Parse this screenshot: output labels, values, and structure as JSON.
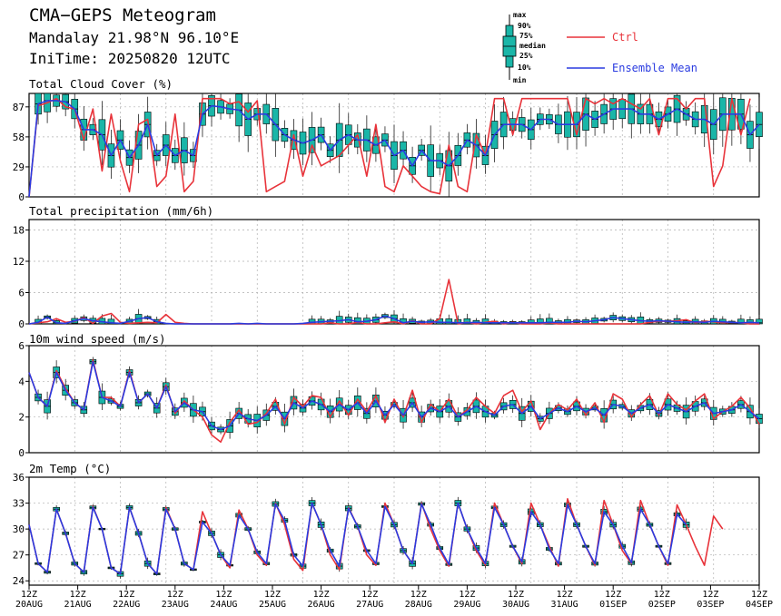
{
  "header": {
    "title": "CMA−GEPS Meteogram",
    "location": "Mandalay 21.98°N 96.10°E",
    "init_time": "IniTime: 20250820 12UTC"
  },
  "legend": {
    "box_labels": [
      "max",
      "90%",
      "75%",
      "median",
      "25%",
      "10%",
      "min"
    ],
    "ctrl_label": "Ctrl",
    "mean_label": "Ensemble Mean"
  },
  "colors": {
    "ctrl": "#e8333a",
    "mean": "#2a3be0",
    "box_fill": "#1ab6a8",
    "grid": "#b0b0b0"
  },
  "x_axis": {
    "tick_hour": "12Z",
    "tick_dates": [
      "20AUG",
      "21AUG",
      "22AUG",
      "23AUG",
      "24AUG",
      "25AUG",
      "26AUG",
      "27AUG",
      "28AUG",
      "29AUG",
      "30AUG",
      "31AUG",
      "01SEP",
      "02SEP",
      "03SEP",
      "04SEP"
    ]
  },
  "chart_data": [
    {
      "type": "line",
      "title": "Total Cloud Cover (%)",
      "ylim": [
        0,
        100
      ],
      "yticks": [
        0,
        29,
        58,
        87
      ],
      "grid": true,
      "series": [
        {
          "name": "Ctrl",
          "values": [
            0,
            88,
            91,
            95,
            87,
            85,
            55,
            85,
            25,
            80,
            35,
            5,
            70,
            75,
            10,
            20,
            80,
            5,
            15,
            95,
            95,
            95,
            90,
            92,
            82,
            93,
            5,
            10,
            15,
            60,
            20,
            50,
            30,
            35,
            40,
            50,
            60,
            20,
            70,
            10,
            5,
            30,
            20,
            10,
            5,
            3,
            50,
            10,
            5,
            60,
            40,
            95,
            95,
            60,
            95,
            95,
            95,
            95,
            95,
            95,
            60,
            95,
            90,
            95,
            90,
            95,
            90,
            85,
            95,
            60,
            95,
            95,
            85,
            95,
            95,
            10,
            30,
            95,
            60,
            95
          ]
        },
        {
          "name": "Ensemble Mean",
          "values": [
            0,
            90,
            93,
            93,
            92,
            85,
            65,
            65,
            60,
            40,
            55,
            38,
            50,
            70,
            40,
            50,
            40,
            45,
            40,
            80,
            88,
            87,
            85,
            84,
            75,
            80,
            80,
            70,
            60,
            55,
            52,
            55,
            60,
            45,
            55,
            60,
            55,
            55,
            50,
            55,
            40,
            45,
            30,
            45,
            35,
            35,
            30,
            40,
            55,
            50,
            40,
            60,
            70,
            70,
            70,
            65,
            75,
            75,
            70,
            70,
            70,
            80,
            75,
            80,
            85,
            85,
            85,
            80,
            80,
            75,
            80,
            85,
            80,
            75,
            75,
            70,
            80,
            80,
            80,
            60,
            70
          ]
        }
      ]
    },
    {
      "type": "line",
      "title": "Total precipitation (mm/6h)",
      "ylim": [
        0,
        20
      ],
      "yticks": [
        0,
        6,
        12,
        18
      ],
      "grid": true,
      "series": [
        {
          "name": "Ctrl",
          "values": [
            0,
            0.2,
            0.4,
            1,
            0.3,
            0.5,
            1.2,
            0.1,
            1.5,
            2,
            0.3,
            0.1,
            0.2,
            0.3,
            0.2,
            1.8,
            0.3,
            0.1,
            0,
            0,
            0,
            0,
            0,
            0,
            0,
            0,
            0,
            0,
            0,
            0,
            0,
            0,
            0,
            0.2,
            0,
            0,
            0.3,
            0,
            0,
            0.2,
            0.4,
            0,
            0.6,
            0,
            0,
            1,
            8.5,
            0,
            0.3,
            0,
            0.3,
            0.5,
            0,
            0.3,
            0,
            0,
            0,
            0.2,
            0,
            0,
            0,
            0,
            0,
            0,
            0,
            0,
            0,
            0,
            0.3,
            0.5,
            0.5,
            0.6,
            0.8,
            0.2,
            0.5,
            0.4,
            0.2,
            0.3,
            0.2,
            0,
            0
          ]
        },
        {
          "name": "Ensemble Mean",
          "values": [
            0,
            0.3,
            1.3,
            0.2,
            0.1,
            0.6,
            1,
            0.6,
            0.4,
            0.2,
            0.1,
            0.5,
            1,
            1.2,
            0.4,
            0.1,
            0,
            0,
            0,
            0,
            0,
            0,
            0,
            0.1,
            0,
            0.1,
            0,
            0,
            0,
            0,
            0.1,
            0.3,
            0.4,
            0.5,
            0.6,
            0.8,
            0.4,
            0.5,
            0.8,
            1.5,
            1,
            0.2,
            0.5,
            0.3,
            0.4,
            0.3,
            0.3,
            0.2,
            0.2,
            0.3,
            0.2,
            0.2,
            0.2,
            0.2,
            0.2,
            0.2,
            0.2,
            0.3,
            0.3,
            0.3,
            0.5,
            0.4,
            0.6,
            0.8,
            1.2,
            1,
            0.8,
            0.6,
            0.5,
            0.6,
            0.5,
            0.4,
            0.3,
            0.4,
            0.3,
            0.5,
            0.4,
            0.3,
            0.2,
            0.3,
            0.2
          ]
        }
      ]
    },
    {
      "type": "line",
      "title": "10m wind speed (m/s)",
      "ylim": [
        0,
        6
      ],
      "yticks": [
        0,
        2,
        4,
        6
      ],
      "grid": true,
      "series": [
        {
          "name": "Ctrl",
          "values": [
            4.5,
            3.1,
            2.6,
            4.6,
            3.6,
            2.8,
            2.4,
            5.2,
            3.1,
            3.1,
            2.6,
            4.6,
            2.8,
            3.3,
            2.5,
            3.8,
            2.2,
            2.9,
            2.4,
            2.0,
            1.0,
            0.6,
            1.7,
            2.4,
            1.6,
            1.7,
            2.2,
            3.0,
            1.6,
            3.1,
            2.6,
            3.2,
            3.1,
            2.0,
            2.9,
            2.1,
            3.0,
            2.3,
            3.2,
            1.7,
            3.0,
            2.0,
            3.5,
            1.7,
            2.7,
            2.3,
            3.0,
            2.0,
            2.4,
            3.1,
            2.6,
            2.2,
            3.2,
            3.5,
            2.3,
            2.9,
            1.3,
            2.2,
            2.7,
            2.4,
            3.0,
            2.1,
            2.8,
            1.7,
            3.3,
            3.0,
            2.0,
            2.7,
            3.2,
            2.1,
            3.3,
            2.7,
            2.4,
            2.9,
            3.3,
            1.9,
            2.3,
            2.6,
            3.1,
            2.5,
            1.6
          ]
        },
        {
          "name": "Ensemble Mean",
          "values": [
            4.5,
            3.1,
            2.6,
            4.5,
            3.5,
            2.8,
            2.4,
            5.1,
            3.1,
            2.9,
            2.6,
            4.5,
            2.8,
            3.3,
            2.5,
            3.7,
            2.3,
            2.8,
            2.4,
            2.3,
            1.5,
            1.3,
            1.5,
            2.2,
            1.9,
            1.8,
            2.1,
            2.6,
            1.9,
            2.8,
            2.5,
            2.9,
            2.7,
            2.3,
            2.7,
            2.4,
            2.8,
            2.2,
            2.9,
            2.1,
            2.7,
            2.1,
            2.8,
            2.0,
            2.5,
            2.3,
            2.6,
            2.0,
            2.3,
            2.6,
            2.3,
            2.1,
            2.6,
            2.7,
            2.2,
            2.6,
            1.9,
            2.2,
            2.5,
            2.3,
            2.6,
            2.3,
            2.5,
            2.1,
            2.7,
            2.6,
            2.2,
            2.5,
            2.7,
            2.2,
            2.7,
            2.5,
            2.3,
            2.6,
            2.8,
            2.2,
            2.3,
            2.4,
            2.7,
            2.3,
            1.9
          ]
        }
      ]
    },
    {
      "type": "line",
      "title": "2m Temp (°C)",
      "ylim": [
        23.5,
        36
      ],
      "yticks": [
        24,
        27,
        30,
        33,
        36
      ],
      "grid": true,
      "series": [
        {
          "name": "Ctrl",
          "values": [
            30.5,
            26,
            25,
            32.3,
            29.5,
            26,
            25,
            32.6,
            30,
            25.5,
            24.8,
            32.5,
            29.5,
            26,
            24.8,
            32.5,
            30,
            26,
            25.3,
            32,
            29.5,
            27,
            25.5,
            32.2,
            30,
            27,
            25.8,
            33,
            30.5,
            26.5,
            25.2,
            33,
            30.5,
            27,
            25.3,
            32.5,
            30.3,
            27,
            25.8,
            33,
            30.5,
            27.5,
            26,
            33,
            30,
            27.5,
            25.7,
            33,
            30,
            27.5,
            25.8,
            33,
            30.5,
            28,
            26,
            33,
            30.5,
            28,
            25.7,
            33.5,
            30.5,
            28,
            25.8,
            33.3,
            30.5,
            27.5,
            26,
            33.3,
            30.5,
            28,
            25.8,
            32.8,
            30.5,
            28,
            25.8,
            31.5,
            30
          ]
        },
        {
          "name": "Ensemble Mean",
          "values": [
            30.5,
            26,
            25,
            32.3,
            29.5,
            26,
            25,
            32.5,
            30,
            25.5,
            24.8,
            32.5,
            29.5,
            26,
            24.8,
            32.3,
            30,
            26,
            25.3,
            30.8,
            29.5,
            27,
            25.8,
            31.6,
            30,
            27.3,
            26,
            32.9,
            31,
            27,
            25.7,
            33,
            30.5,
            27.5,
            25.7,
            32.4,
            30.3,
            27.5,
            26,
            32.6,
            30.5,
            27.5,
            26,
            32.9,
            30.5,
            27.8,
            25.9,
            33,
            30,
            27.8,
            26,
            32.5,
            30.5,
            28,
            26.2,
            32,
            30.5,
            27.7,
            26,
            32.8,
            30.5,
            28,
            26,
            32,
            30.5,
            28,
            26.1,
            32.3,
            30.5,
            28,
            26,
            31.7,
            30.5
          ]
        }
      ]
    }
  ]
}
